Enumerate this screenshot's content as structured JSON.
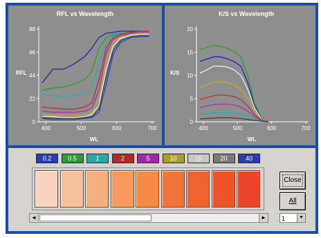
{
  "left_chart": {
    "title": "RFL vs Wavelength",
    "ylabel": "RFL",
    "xlabel": "WL",
    "y_ticks": [
      "0",
      "22",
      "44",
      "66",
      "88"
    ],
    "x_ticks": [
      "400",
      "500",
      "600",
      "700"
    ]
  },
  "right_chart": {
    "title": "K/S vs Wavelength",
    "ylabel": "K/S",
    "xlabel": "WL",
    "y_ticks": [
      "0",
      "5",
      "10",
      "15",
      "20"
    ],
    "x_ticks": [
      "400",
      "500",
      "600",
      "700"
    ]
  },
  "chart_data": [
    {
      "type": "line",
      "title": "RFL vs Wavelength",
      "xlabel": "WL",
      "ylabel": "RFL",
      "xlim": [
        380,
        700
      ],
      "ylim": [
        0,
        88
      ],
      "x": [
        390,
        420,
        450,
        480,
        510,
        530,
        550,
        570,
        590,
        610,
        640,
        670,
        690
      ],
      "series": [
        {
          "color": "#1a2ca8",
          "values": [
            37,
            50,
            50,
            55,
            62,
            70,
            80,
            84,
            85,
            86,
            86,
            86,
            86
          ]
        },
        {
          "color": "#2ca02c",
          "values": [
            30,
            32,
            33,
            36,
            40,
            48,
            70,
            80,
            83,
            84,
            85,
            86,
            86
          ]
        },
        {
          "color": "#20b0b0",
          "values": [
            26,
            25,
            24,
            25,
            27,
            32,
            55,
            76,
            82,
            84,
            85,
            86,
            86
          ]
        },
        {
          "color": "#c03030",
          "values": [
            14,
            13,
            12,
            12,
            14,
            18,
            40,
            70,
            80,
            83,
            85,
            86,
            86
          ]
        },
        {
          "color": "#b030b0",
          "values": [
            10,
            9,
            9,
            9,
            10,
            13,
            30,
            65,
            78,
            82,
            84,
            85,
            85
          ]
        },
        {
          "color": "#c0b020",
          "values": [
            7,
            6,
            6,
            6,
            7,
            9,
            22,
            58,
            76,
            80,
            83,
            84,
            84
          ]
        },
        {
          "color": "#e8e8e8",
          "values": [
            5,
            5,
            4,
            4,
            5,
            7,
            16,
            50,
            72,
            79,
            82,
            83,
            83
          ]
        },
        {
          "color": "#404040",
          "values": [
            4,
            3,
            3,
            3,
            4,
            5,
            12,
            42,
            68,
            77,
            81,
            82,
            82
          ]
        },
        {
          "color": "#3040c0",
          "values": [
            3,
            2,
            2,
            2,
            3,
            4,
            9,
            35,
            64,
            75,
            80,
            81,
            81
          ]
        }
      ]
    },
    {
      "type": "line",
      "title": "K/S vs Wavelength",
      "xlabel": "WL",
      "ylabel": "K/S",
      "xlim": [
        380,
        700
      ],
      "ylim": [
        0,
        20
      ],
      "x": [
        390,
        410,
        430,
        450,
        470,
        490,
        510,
        530,
        550,
        570,
        590
      ],
      "series": [
        {
          "color": "#2ca02c",
          "values": [
            15.5,
            16.0,
            16.5,
            16.3,
            15.8,
            15.2,
            14.0,
            10.0,
            4.0,
            0.8,
            0.1
          ]
        },
        {
          "color": "#1a2ca8",
          "values": [
            13.0,
            13.5,
            14.0,
            14.0,
            13.6,
            13.0,
            12.0,
            8.5,
            3.5,
            0.7,
            0.1
          ]
        },
        {
          "color": "#e8e8e8",
          "values": [
            10.5,
            11.2,
            12.0,
            12.0,
            11.8,
            11.2,
            10.0,
            7.0,
            3.0,
            0.6,
            0.1
          ]
        },
        {
          "color": "#c0b020",
          "values": [
            7.2,
            8.0,
            8.5,
            8.6,
            8.5,
            8.0,
            7.0,
            5.0,
            2.2,
            0.5,
            0.1
          ]
        },
        {
          "color": "#c03030",
          "values": [
            4.8,
            5.2,
            5.6,
            5.8,
            5.7,
            5.4,
            4.8,
            3.4,
            1.6,
            0.4,
            0.1
          ]
        },
        {
          "color": "#b030b0",
          "values": [
            3.0,
            3.4,
            3.7,
            3.8,
            3.8,
            3.6,
            3.2,
            2.3,
            1.1,
            0.3,
            0.0
          ]
        },
        {
          "color": "#20b0b0",
          "values": [
            1.5,
            1.7,
            1.9,
            2.0,
            2.0,
            1.9,
            1.7,
            1.2,
            0.6,
            0.2,
            0.0
          ]
        },
        {
          "color": "#404040",
          "values": [
            0.6,
            0.7,
            0.8,
            0.9,
            0.9,
            0.8,
            0.7,
            0.5,
            0.3,
            0.1,
            0.0
          ]
        }
      ]
    }
  ],
  "concentrations": [
    {
      "label": "0.2",
      "color": "#2a3db0"
    },
    {
      "label": "0.5",
      "color": "#2a9a3a"
    },
    {
      "label": "1",
      "color": "#28a8a8"
    },
    {
      "label": "2",
      "color": "#b02a2a"
    },
    {
      "label": "5",
      "color": "#a02aa8"
    },
    {
      "label": "10",
      "color": "#a8a028"
    },
    {
      "label": "15",
      "color": "#c8c8c8"
    },
    {
      "label": "20",
      "color": "#7a7a7a"
    },
    {
      "label": "40",
      "color": "#2a3db0"
    }
  ],
  "swatches": [
    "#f8d4c0",
    "#f7c09c",
    "#f5b07e",
    "#f59a5c",
    "#f58a46",
    "#f27438",
    "#f0632e",
    "#ee5428",
    "#ec4628"
  ],
  "buttons": {
    "close": "Close",
    "all": "All"
  },
  "zoom": {
    "value": "1"
  }
}
